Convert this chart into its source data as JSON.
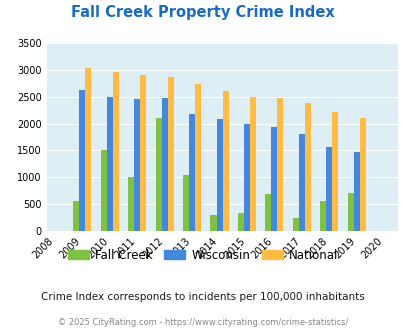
{
  "title": "Fall Creek Property Crime Index",
  "years_with_data": [
    2009,
    2010,
    2011,
    2012,
    2013,
    2014,
    2015,
    2016,
    2017,
    2018,
    2019
  ],
  "all_xtick_labels": [
    "2008",
    "2009",
    "2010",
    "2011",
    "2012",
    "2013",
    "2014",
    "2015",
    "2016",
    "2017",
    "2018",
    "2019",
    "2020"
  ],
  "fall_creek": [
    550,
    1500,
    1000,
    2100,
    1050,
    305,
    330,
    680,
    250,
    560,
    700
  ],
  "wisconsin": [
    2620,
    2500,
    2460,
    2480,
    2170,
    2090,
    2000,
    1940,
    1800,
    1560,
    1470
  ],
  "national": [
    3040,
    2960,
    2910,
    2870,
    2730,
    2600,
    2500,
    2480,
    2380,
    2210,
    2110
  ],
  "fall_creek_color": "#7dc242",
  "wisconsin_color": "#4488dd",
  "national_color": "#ffbb44",
  "bg_color": "#ddeef4",
  "ylim": [
    0,
    3500
  ],
  "yticks": [
    0,
    500,
    1000,
    1500,
    2000,
    2500,
    3000,
    3500
  ],
  "legend_labels": [
    "Fall Creek",
    "Wisconsin",
    "National"
  ],
  "note": "Crime Index corresponds to incidents per 100,000 inhabitants",
  "footer": "© 2025 CityRating.com - https://www.cityrating.com/crime-statistics/",
  "title_color": "#1a6bbf",
  "note_color": "#1a1a1a",
  "footer_color": "#888888"
}
